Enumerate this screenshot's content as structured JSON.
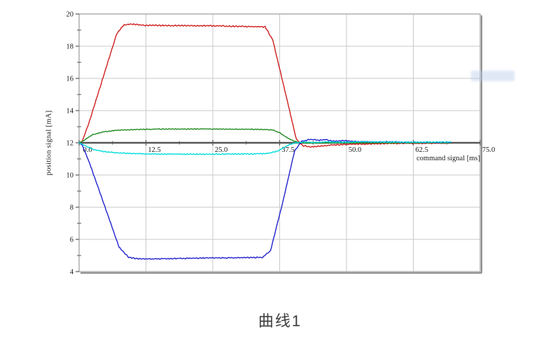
{
  "chart_data": {
    "type": "line",
    "title": "曲线1",
    "xlabel": "command signal [ms]",
    "ylabel": "position signal [mA]",
    "xlim": [
      0,
      75
    ],
    "ylim": [
      4,
      20
    ],
    "x_axis_position": 12,
    "grid": true,
    "legend": "none",
    "x_major_ticks": [
      0,
      12.5,
      25,
      37.5,
      50,
      62.5,
      75
    ],
    "x_tick_labels": [
      "0.0",
      "12.5",
      "25.0",
      "37.5",
      "50.0",
      "62.5",
      "75.0"
    ],
    "x_minor_step": 6.25,
    "y_major_ticks": [
      4,
      6,
      8,
      10,
      12,
      14,
      16,
      18,
      20
    ],
    "y_tick_labels": [
      "4",
      "6",
      "8",
      "10",
      "12",
      "14",
      "16",
      "18",
      "20"
    ],
    "y_minor_step": 1,
    "colors": {
      "grid": "#c9c9c9",
      "border": "#9a9a9a",
      "border_shadow": "#8d8d8d",
      "axis": "#565656",
      "tick_text": "#1b1b1b",
      "red": "#cf1d1d",
      "green": "#1f8a1f",
      "blue": "#2121cd",
      "cyan": "#00dcdc"
    },
    "series": [
      {
        "name": "red-trace",
        "color": "#cf1d1d",
        "noise": 0.045,
        "points": [
          [
            0,
            12
          ],
          [
            0.6,
            12.1
          ],
          [
            2,
            13.4
          ],
          [
            7,
            18.75
          ],
          [
            8.3,
            19.3
          ],
          [
            9.5,
            19.38
          ],
          [
            12,
            19.3
          ],
          [
            18,
            19.28
          ],
          [
            25,
            19.27
          ],
          [
            31,
            19.22
          ],
          [
            34.8,
            19.2
          ],
          [
            36.2,
            18.4
          ],
          [
            38.5,
            15.2
          ],
          [
            40.6,
            12.25
          ],
          [
            41.8,
            11.82
          ],
          [
            43.5,
            11.75
          ],
          [
            45.5,
            11.8
          ],
          [
            47.5,
            11.87
          ],
          [
            50,
            11.9
          ],
          [
            54,
            11.93
          ],
          [
            58,
            11.96
          ],
          [
            63,
            11.97
          ],
          [
            69.5,
            11.98
          ]
        ]
      },
      {
        "name": "green-trace",
        "color": "#1f8a1f",
        "noise": 0.03,
        "points": [
          [
            0,
            12
          ],
          [
            0.8,
            12.12
          ],
          [
            2.5,
            12.5
          ],
          [
            4.5,
            12.68
          ],
          [
            7,
            12.78
          ],
          [
            10,
            12.82
          ],
          [
            15,
            12.85
          ],
          [
            22,
            12.86
          ],
          [
            28,
            12.85
          ],
          [
            33,
            12.84
          ],
          [
            36.2,
            12.8
          ],
          [
            37.6,
            12.6
          ],
          [
            39.5,
            12.2
          ],
          [
            41,
            12.02
          ],
          [
            43,
            11.98
          ],
          [
            46,
            12.0
          ],
          [
            50,
            12.0
          ],
          [
            56,
            12.0
          ],
          [
            62,
            12.0
          ],
          [
            69.5,
            12.0
          ]
        ]
      },
      {
        "name": "blue-trace",
        "color": "#2121cd",
        "noise": 0.04,
        "points": [
          [
            0,
            12
          ],
          [
            0.6,
            11.85
          ],
          [
            2,
            10.7
          ],
          [
            7.5,
            5.5
          ],
          [
            9.3,
            4.88
          ],
          [
            11,
            4.8
          ],
          [
            14,
            4.79
          ],
          [
            19,
            4.82
          ],
          [
            25,
            4.85
          ],
          [
            30,
            4.86
          ],
          [
            34.3,
            4.88
          ],
          [
            35.8,
            5.3
          ],
          [
            38,
            8.2
          ],
          [
            40.3,
            11.5
          ],
          [
            41.6,
            12.08
          ],
          [
            43.2,
            12.22
          ],
          [
            44.6,
            12.15
          ],
          [
            46,
            12.2
          ],
          [
            47.6,
            12.1
          ],
          [
            49.5,
            12.13
          ],
          [
            52,
            12.08
          ],
          [
            55,
            12.05
          ],
          [
            58,
            12.06
          ],
          [
            62,
            12.03
          ],
          [
            69.5,
            12.03
          ]
        ]
      },
      {
        "name": "cyan-trace",
        "color": "#00dcdc",
        "noise": 0.035,
        "points": [
          [
            0,
            12
          ],
          [
            0.8,
            11.88
          ],
          [
            2.5,
            11.6
          ],
          [
            4.5,
            11.45
          ],
          [
            7,
            11.38
          ],
          [
            10,
            11.33
          ],
          [
            15,
            11.3
          ],
          [
            22,
            11.29
          ],
          [
            28,
            11.3
          ],
          [
            33,
            11.31
          ],
          [
            35.5,
            11.35
          ],
          [
            37.2,
            11.5
          ],
          [
            39,
            11.85
          ],
          [
            40.5,
            12.0
          ],
          [
            42,
            12.05
          ],
          [
            44,
            12.02
          ],
          [
            46.5,
            12.06
          ],
          [
            49,
            12.04
          ],
          [
            52,
            12.06
          ],
          [
            56,
            12.05
          ],
          [
            60,
            12.04
          ],
          [
            65,
            12.04
          ],
          [
            69.5,
            12.05
          ]
        ]
      }
    ]
  }
}
